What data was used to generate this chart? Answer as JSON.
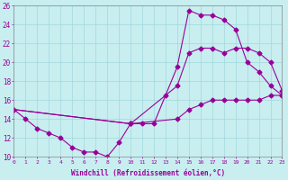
{
  "xlabel": "Windchill (Refroidissement éolien,°C)",
  "bg_color": "#c8eef0",
  "line_color": "#990099",
  "grid_color": "#a0d8dc",
  "xmin": 0,
  "xmax": 23,
  "ymin": 10,
  "ymax": 26,
  "line1_x": [
    0,
    1,
    2,
    3,
    4,
    5,
    6,
    7,
    8,
    9,
    10,
    11,
    12,
    13,
    14,
    15,
    16,
    17,
    18,
    19,
    20,
    21,
    22,
    23
  ],
  "line1_y": [
    15,
    14,
    13,
    12.5,
    12,
    11,
    10.5,
    10.5,
    10,
    11.5,
    13.5,
    13.5,
    13.5,
    16.5,
    19.5,
    25.5,
    25,
    25,
    24.5,
    23.5,
    20,
    19,
    17.5,
    16.5
  ],
  "line2_x": [
    0,
    10,
    14,
    15,
    16,
    17,
    18,
    19,
    20,
    21,
    22,
    23
  ],
  "line2_y": [
    15,
    13.5,
    17.5,
    21,
    21.5,
    21.5,
    21,
    21.5,
    21.5,
    21,
    20,
    17
  ],
  "line3_x": [
    0,
    10,
    14,
    15,
    16,
    17,
    18,
    19,
    20,
    21,
    22,
    23
  ],
  "line3_y": [
    15,
    13.5,
    14,
    15,
    15.5,
    16,
    16,
    16,
    16,
    16,
    16.5,
    16.5
  ],
  "marker_size": 2.5,
  "linewidth": 0.8
}
